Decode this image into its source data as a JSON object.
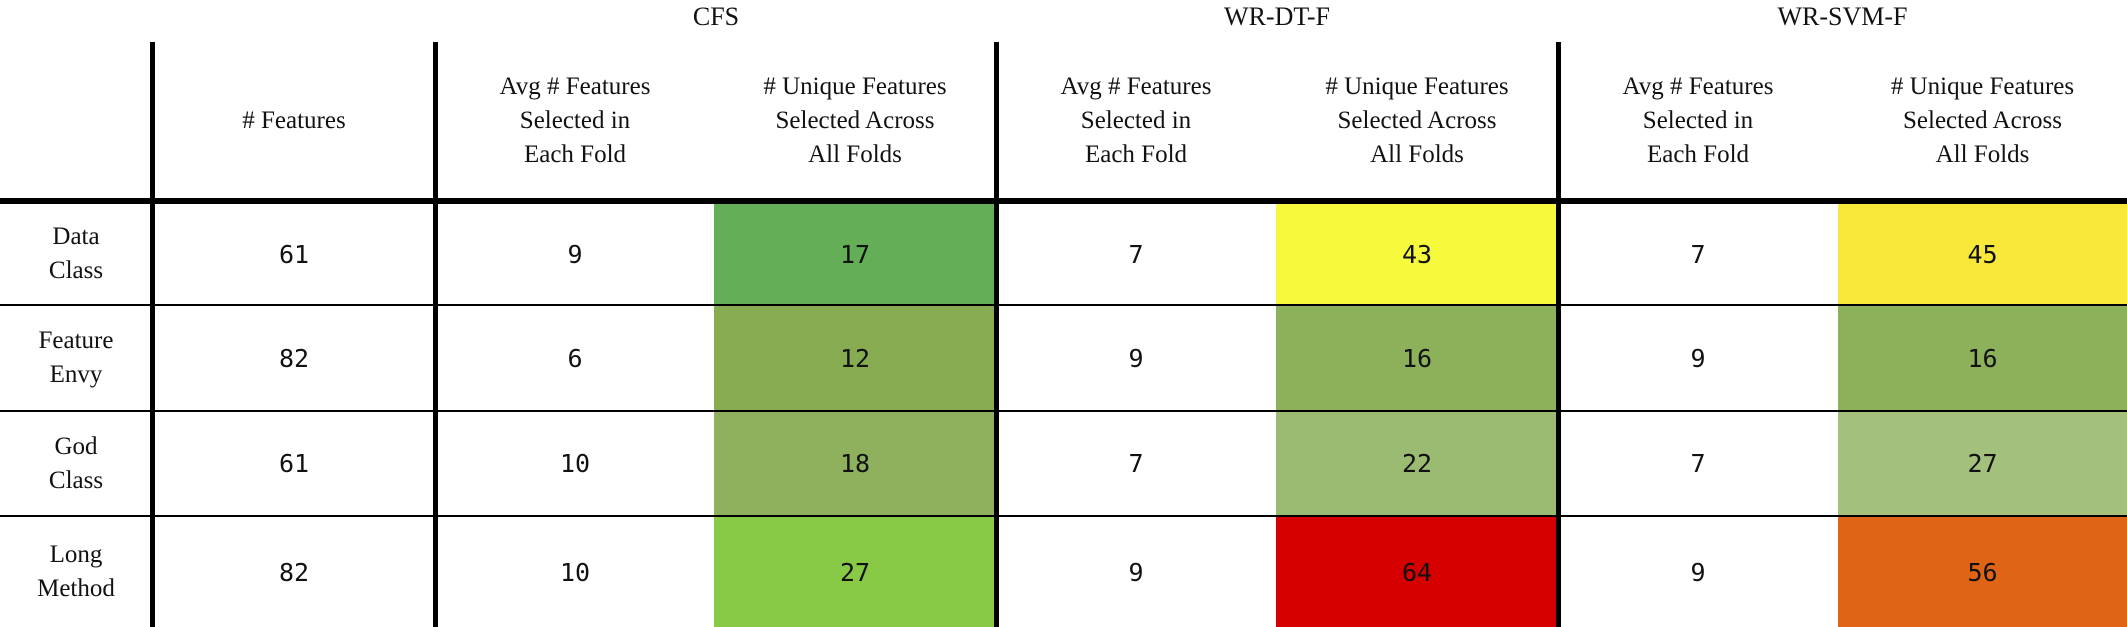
{
  "groups": [
    "CFS",
    "WR-DT-F",
    "WR-SVM-F"
  ],
  "headers": {
    "features": "# Features",
    "avg": "Avg # Features\nSelected in\nEach Fold",
    "unique": "# Unique Features\nSelected Across\nAll Folds"
  },
  "rows": [
    {
      "label": "Data\nClass",
      "features": "61",
      "cfs_avg": "9",
      "cfs_unique": "17",
      "dt_avg": "7",
      "dt_unique": "43",
      "svm_avg": "7",
      "svm_unique": "45"
    },
    {
      "label": "Feature\nEnvy",
      "features": "82",
      "cfs_avg": "6",
      "cfs_unique": "12",
      "dt_avg": "9",
      "dt_unique": "16",
      "svm_avg": "9",
      "svm_unique": "16"
    },
    {
      "label": "God\nClass",
      "features": "61",
      "cfs_avg": "10",
      "cfs_unique": "18",
      "dt_avg": "7",
      "dt_unique": "22",
      "svm_avg": "7",
      "svm_unique": "27"
    },
    {
      "label": "Long\nMethod",
      "features": "82",
      "cfs_avg": "10",
      "cfs_unique": "27",
      "dt_avg": "9",
      "dt_unique": "64",
      "svm_avg": "9",
      "svm_unique": "56"
    }
  ],
  "heat_colors": {
    "cfs_unique": [
      "#63ae57",
      "#87ab50",
      "#8fb15e",
      "#88c946"
    ],
    "dt_unique": [
      "#f7f93c",
      "#8db05a",
      "#9bba72",
      "#d60000"
    ],
    "svm_unique": [
      "#f7e83a",
      "#8db05a",
      "#a3c07d",
      "#e06415"
    ]
  }
}
